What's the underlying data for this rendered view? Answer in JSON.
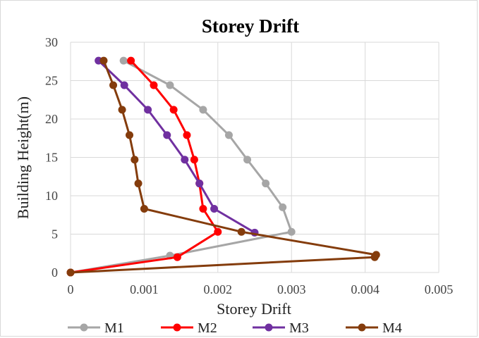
{
  "chart_data": {
    "type": "line",
    "title": "Storey Drift",
    "xlabel": "Storey Drift",
    "ylabel": "Building Height(m)",
    "xlim": [
      0,
      0.005
    ],
    "ylim": [
      0,
      30
    ],
    "x_ticks": [
      "0",
      "0.001",
      "0.002",
      "0.003",
      "0.004",
      "0.005"
    ],
    "y_ticks": [
      "0",
      "5",
      "10",
      "15",
      "20",
      "25",
      "30"
    ],
    "grid": true,
    "legend_position": "bottom",
    "series": [
      {
        "name": "M1",
        "color": "#a6a6a6",
        "points": [
          [
            0,
            0
          ],
          [
            0.00135,
            2.2
          ],
          [
            0.003,
            5.3
          ],
          [
            0.00288,
            8.5
          ],
          [
            0.00265,
            11.6
          ],
          [
            0.0024,
            14.7
          ],
          [
            0.00215,
            17.9
          ],
          [
            0.0018,
            21.2
          ],
          [
            0.00135,
            24.4
          ],
          [
            0.00072,
            27.6
          ]
        ]
      },
      {
        "name": "M2",
        "color": "#ff0000",
        "points": [
          [
            0,
            0
          ],
          [
            0.00145,
            2.0
          ],
          [
            0.002,
            5.3
          ],
          [
            0.0018,
            8.3
          ],
          [
            0.00175,
            11.6
          ],
          [
            0.00168,
            14.7
          ],
          [
            0.00158,
            17.9
          ],
          [
            0.0014,
            21.2
          ],
          [
            0.00113,
            24.4
          ],
          [
            0.00082,
            27.6
          ]
        ]
      },
      {
        "name": "M3",
        "color": "#7030a0",
        "points": [
          [
            0.0025,
            5.2
          ],
          [
            0.00195,
            8.3
          ],
          [
            0.00175,
            11.6
          ],
          [
            0.00155,
            14.7
          ],
          [
            0.00131,
            17.9
          ],
          [
            0.00105,
            21.2
          ],
          [
            0.00073,
            24.4
          ],
          [
            0.00038,
            27.6
          ]
        ]
      },
      {
        "name": "M4",
        "color": "#843c0c",
        "points": [
          [
            0,
            0
          ],
          [
            0.00413,
            2.0
          ],
          [
            0.00415,
            2.3
          ],
          [
            0.00232,
            5.3
          ],
          [
            0.001,
            8.3
          ],
          [
            0.00092,
            11.6
          ],
          [
            0.00087,
            14.7
          ],
          [
            0.0008,
            17.9
          ],
          [
            0.0007,
            21.2
          ],
          [
            0.00058,
            24.4
          ],
          [
            0.00045,
            27.6
          ]
        ]
      }
    ]
  }
}
